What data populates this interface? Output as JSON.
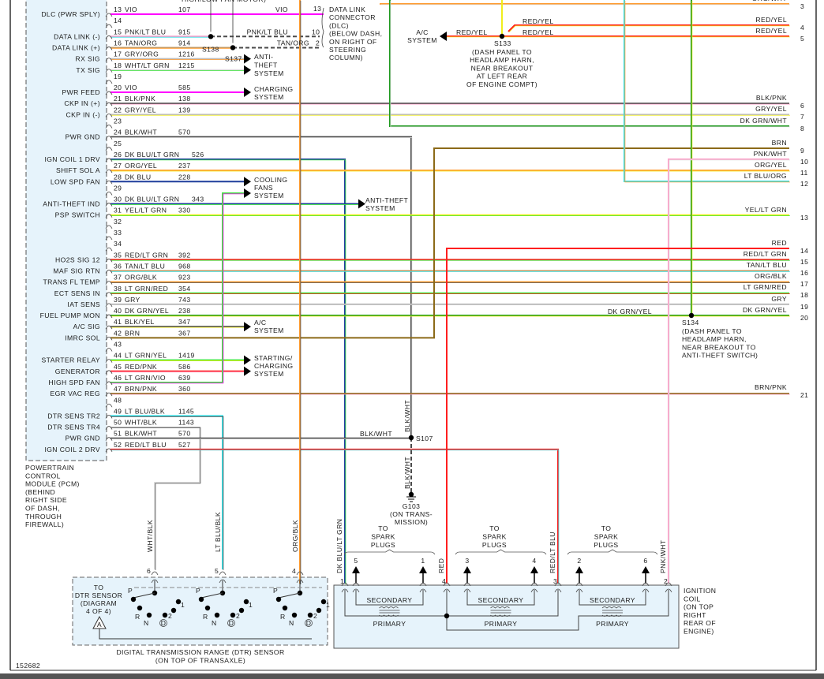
{
  "figure_id": "152682",
  "top_cut_label": "HIGH/LOW FAN MOTOR)",
  "wire_colors": {
    "VIO": "#ff00ff",
    "PNK": "#ff9ec8",
    "LT BLU": "#36e0e6",
    "TAN": "#c49a62",
    "ORG": "#ff9a2e",
    "GRY": "#bdbdbd",
    "WHT": "#dcdcdc",
    "LT GRN": "#3fe83f",
    "BLK": "#4a4a4a",
    "DK BLU": "#1f3d9c",
    "YEL": "#f0ee1e",
    "RED": "#ff1f1f",
    "DK GRN": "#1f9a1f",
    "BRN": "#8c6a18"
  },
  "pcm": {
    "title_lines": [
      "POWERTRAIN",
      "CONTROL",
      "MODULE (PCM)",
      "(BEHIND",
      "RIGHT SIDE",
      "OF DASH,",
      "THROUGH",
      "FIREWALL)"
    ],
    "pins": [
      {
        "pin": "13",
        "func": "DLC (PWR SPLY)",
        "color": "VIO",
        "circuit": "107"
      },
      {
        "pin": "14"
      },
      {
        "pin": "15",
        "func": "DATA LINK (-)",
        "color": "PNK/LT BLU",
        "circuit": "915"
      },
      {
        "pin": "16",
        "func": "DATA LINK (+)",
        "color": "TAN/ORG",
        "circuit": "914"
      },
      {
        "pin": "17",
        "func": "RX SIG",
        "color": "GRY/ORG",
        "circuit": "1216"
      },
      {
        "pin": "18",
        "func": "TX SIG",
        "color": "WHT/LT GRN",
        "circuit": "1215"
      },
      {
        "pin": "19"
      },
      {
        "pin": "20",
        "func": "PWR FEED",
        "color": "VIO",
        "circuit": "585"
      },
      {
        "pin": "21",
        "func": "CKP IN (+)",
        "color": "BLK/PNK",
        "circuit": "138"
      },
      {
        "pin": "22",
        "func": "CKP IN (-)",
        "color": "GRY/YEL",
        "circuit": "139"
      },
      {
        "pin": "23"
      },
      {
        "pin": "24",
        "func": "PWR GND",
        "color": "BLK/WHT",
        "circuit": "570"
      },
      {
        "pin": "25"
      },
      {
        "pin": "26",
        "func": "IGN COIL 1 DRV",
        "color": "DK BLU/LT GRN",
        "circuit": "526"
      },
      {
        "pin": "27",
        "func": "SHIFT SOL A",
        "color": "ORG/YEL",
        "circuit": "237"
      },
      {
        "pin": "28",
        "func": "LOW SPD FAN",
        "color": "DK BLU",
        "circuit": "228"
      },
      {
        "pin": "29"
      },
      {
        "pin": "30",
        "func": "ANTI-THEFT IND",
        "color": "DK BLU/LT GRN",
        "circuit": "343"
      },
      {
        "pin": "31",
        "func": "PSP SWITCH",
        "color": "YEL/LT GRN",
        "circuit": "330"
      },
      {
        "pin": "32"
      },
      {
        "pin": "33"
      },
      {
        "pin": "34"
      },
      {
        "pin": "35",
        "func": "HO2S SIG 12",
        "color": "RED/LT GRN",
        "circuit": "392"
      },
      {
        "pin": "36",
        "func": "MAF SIG RTN",
        "color": "TAN/LT BLU",
        "circuit": "968"
      },
      {
        "pin": "37",
        "func": "TRANS FL TEMP",
        "color": "ORG/BLK",
        "circuit": "923"
      },
      {
        "pin": "38",
        "func": "ECT SENS IN",
        "color": "LT GRN/RED",
        "circuit": "354"
      },
      {
        "pin": "39",
        "func": "IAT SENS",
        "color": "GRY",
        "circuit": "743"
      },
      {
        "pin": "40",
        "func": "FUEL PUMP MON",
        "color": "DK GRN/YEL",
        "circuit": "238"
      },
      {
        "pin": "41",
        "func": "A/C SIG",
        "color": "BLK/YEL",
        "circuit": "347"
      },
      {
        "pin": "42",
        "func": "IMRC SOL",
        "color": "BRN",
        "circuit": "367"
      },
      {
        "pin": "43"
      },
      {
        "pin": "44",
        "func": "STARTER RELAY",
        "color": "LT GRN/YEL",
        "circuit": "1419"
      },
      {
        "pin": "45",
        "func": "GENERATOR",
        "color": "RED/PNK",
        "circuit": "586"
      },
      {
        "pin": "46",
        "func": "HIGH SPD FAN",
        "color": "LT GRN/VIO",
        "circuit": "639"
      },
      {
        "pin": "47",
        "func": "EGR VAC REG",
        "color": "BRN/PNK",
        "circuit": "360"
      },
      {
        "pin": "48"
      },
      {
        "pin": "49",
        "func": "DTR SENS TR2",
        "color": "LT BLU/BLK",
        "circuit": "1145"
      },
      {
        "pin": "50",
        "func": "DTR SENS TR4",
        "color": "WHT/BLK",
        "circuit": "1143"
      },
      {
        "pin": "51",
        "func": "PWR GND",
        "color": "BLK/WHT",
        "circuit": "570"
      },
      {
        "pin": "52",
        "func": "IGN COIL 2 DRV",
        "color": "RED/LT BLU",
        "circuit": "527"
      }
    ]
  },
  "right_pins": [
    {
      "num": "3",
      "label": "ORG/WHT"
    },
    {
      "num": "4",
      "label": "RED/YEL"
    },
    {
      "num": "5",
      "label": "RED/YEL"
    },
    {
      "num": "6",
      "label": "BLK/PNK"
    },
    {
      "num": "7",
      "label": "GRY/YEL"
    },
    {
      "num": "8",
      "label": "DK GRN/WHT"
    },
    {
      "num": "9",
      "label": "BRN"
    },
    {
      "num": "10",
      "label": "PNK/WHT"
    },
    {
      "num": "11",
      "label": "ORG/YEL"
    },
    {
      "num": "12",
      "label": "LT BLU/ORG"
    },
    {
      "num": "13",
      "label": "YEL/LT GRN"
    },
    {
      "num": "14",
      "label": "RED"
    },
    {
      "num": "15",
      "label": "RED/LT GRN"
    },
    {
      "num": "16",
      "label": "TAN/LT BLU"
    },
    {
      "num": "17",
      "label": "ORG/BLK"
    },
    {
      "num": "18",
      "label": "LT GRN/RED"
    },
    {
      "num": "19",
      "label": "GRY"
    },
    {
      "num": "20",
      "label": "DK GRN/YEL"
    },
    {
      "num": "21",
      "label": "BRN/PNK"
    }
  ],
  "dlc": {
    "wire_labels": [
      "VIO",
      "PNK/LT BLU",
      "TAN/ORG"
    ],
    "pins": [
      "13",
      "10",
      "2"
    ],
    "title_lines": [
      "DATA LINK",
      "CONNECTOR",
      "(DLC)",
      "(BELOW DASH,",
      "ON RIGHT OF",
      "STEERING",
      "COLUMN)"
    ]
  },
  "splices": {
    "s138": "S138",
    "s137": "S137",
    "s133": {
      "name": "S133",
      "lines": [
        "(DASH PANEL TO",
        "HEADLAMP HARN,",
        "NEAR BREAKOUT",
        "AT LEFT REAR",
        "OF ENGINE COMPT)"
      ],
      "wire_labels": [
        "RED/YEL",
        "RED/YEL",
        "RED/YEL"
      ]
    },
    "s134": {
      "name": "S134",
      "lines": [
        "(DASH PANEL TO",
        "HEADLAMP HARN,",
        "NEAR BREAKOUT TO",
        "ANTI-THEFT SWITCH)"
      ],
      "wire_label": "DK GRN/YEL"
    },
    "s107": {
      "name": "S107",
      "wire_labels": [
        "BLK/WHT",
        "BLK/WHT",
        "BLK/WHT"
      ]
    }
  },
  "ground": {
    "name": "G103",
    "lines": [
      "(ON TRANS-",
      "MISSION)"
    ]
  },
  "destinations": {
    "anti_theft_1": [
      "ANTI-",
      "THEFT",
      "SYSTEM"
    ],
    "charging": [
      "CHARGING",
      "SYSTEM"
    ],
    "cooling_fans": [
      "COOLING",
      "FANS",
      "SYSTEM"
    ],
    "anti_theft_2": [
      "ANTI-THEFT",
      "SYSTEM"
    ],
    "ac_1": [
      "A/C",
      "SYSTEM"
    ],
    "starting_charging": [
      "STARTING/",
      "CHARGING",
      "SYSTEM"
    ],
    "ac_2": [
      "A/C",
      "SYSTEM"
    ]
  },
  "dtr": {
    "wire_labels": [
      "WHT/BLK",
      "LT BLU/BLK",
      "ORG/BLK"
    ],
    "pins": [
      "6",
      "5",
      "4"
    ],
    "ref_lines": [
      "TO",
      "DTR SENSOR",
      "(DIAGRAM",
      "4 OF 4)"
    ],
    "ref_symbol": "A",
    "positions": [
      "P",
      "R",
      "N",
      "D",
      "2",
      "1"
    ],
    "title_lines": [
      "DIGITAL TRANSMISSION RANGE (DTR) SENSOR",
      "(ON TOP OF TRANSAXLE)"
    ]
  },
  "coil": {
    "wire_labels": [
      "DK BLU/LT GRN",
      "RED",
      "RED/LT BLU",
      "PNK/WHT"
    ],
    "pins": [
      "1",
      "4",
      "3",
      "2"
    ],
    "spark_label_lines": [
      "TO",
      "SPARK",
      "PLUGS"
    ],
    "spark_pins": [
      "5",
      "1",
      "3",
      "4",
      "2",
      "6"
    ],
    "secondary": "SECONDARY",
    "primary": "PRIMARY",
    "title_lines": [
      "IGNITION",
      "COIL",
      "(ON TOP",
      "RIGHT",
      "REAR OF",
      "ENGINE)"
    ]
  }
}
